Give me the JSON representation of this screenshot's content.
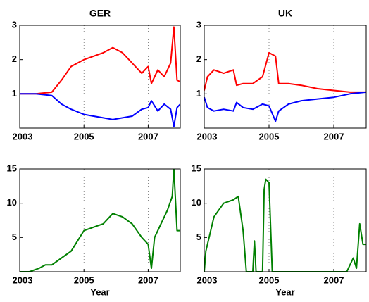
{
  "chart_data": [
    {
      "type": "line",
      "title": "GER",
      "x": [
        2003,
        2003.5,
        2004,
        2004.3,
        2004.6,
        2005,
        2005.3,
        2005.6,
        2005.9,
        2006.2,
        2006.5,
        2006.8,
        2007,
        2007.1,
        2007.3,
        2007.5,
        2007.7,
        2007.8,
        2007.9,
        2008
      ],
      "series": [
        {
          "color": "#ff0000",
          "values": [
            1,
            1,
            1.05,
            1.4,
            1.8,
            2.0,
            2.1,
            2.2,
            2.35,
            2.2,
            1.9,
            1.6,
            1.8,
            1.3,
            1.7,
            1.5,
            1.9,
            2.95,
            1.4,
            1.35
          ]
        },
        {
          "color": "#0000ff",
          "values": [
            1,
            1,
            0.95,
            0.7,
            0.55,
            0.4,
            0.35,
            0.3,
            0.25,
            0.3,
            0.35,
            0.55,
            0.6,
            0.8,
            0.5,
            0.7,
            0.55,
            0.05,
            0.6,
            0.7
          ]
        }
      ],
      "xlim": [
        2003,
        2008
      ],
      "ylim": [
        0,
        3
      ],
      "xticks": [
        2003,
        2005,
        2007
      ],
      "yticks": [
        1,
        2,
        3
      ],
      "grid": "x"
    },
    {
      "type": "line",
      "title": "UK",
      "x": [
        2003,
        2003.1,
        2003.3,
        2003.6,
        2003.9,
        2004,
        2004.2,
        2004.5,
        2004.8,
        2005,
        2005.2,
        2005.3,
        2005.6,
        2006,
        2006.5,
        2007,
        2007.5,
        2008
      ],
      "series": [
        {
          "color": "#ff0000",
          "values": [
            1.1,
            1.5,
            1.7,
            1.6,
            1.7,
            1.25,
            1.3,
            1.3,
            1.5,
            2.2,
            2.1,
            1.3,
            1.3,
            1.25,
            1.15,
            1.1,
            1.05,
            1.05
          ]
        },
        {
          "color": "#0000ff",
          "values": [
            0.9,
            0.6,
            0.5,
            0.55,
            0.5,
            0.75,
            0.6,
            0.55,
            0.7,
            0.65,
            0.2,
            0.5,
            0.7,
            0.8,
            0.85,
            0.9,
            1.0,
            1.05
          ]
        }
      ],
      "xlim": [
        2003,
        2008
      ],
      "ylim": [
        0,
        3
      ],
      "xticks": [
        2003,
        2005,
        2007
      ],
      "yticks": [
        1,
        2,
        3
      ],
      "grid": "x"
    },
    {
      "type": "line",
      "x_label": "Year",
      "x": [
        2003,
        2003.3,
        2003.6,
        2003.8,
        2004,
        2004.3,
        2004.6,
        2005,
        2005.3,
        2005.6,
        2005.9,
        2006.2,
        2006.5,
        2006.8,
        2007,
        2007.1,
        2007.2,
        2007.4,
        2007.6,
        2007.75,
        2007.8,
        2007.9,
        2008
      ],
      "series": [
        {
          "color": "#008000",
          "values": [
            0,
            0,
            0.5,
            1,
            1,
            2,
            3,
            6,
            6.5,
            7,
            8.5,
            8,
            7,
            5,
            4,
            0.5,
            5,
            7,
            9,
            11,
            15,
            6,
            6
          ]
        }
      ],
      "xlim": [
        2003,
        2008
      ],
      "ylim": [
        0,
        15
      ],
      "xticks": [
        2003,
        2005,
        2007
      ],
      "yticks": [
        5,
        10,
        15
      ],
      "grid": "x"
    },
    {
      "type": "line",
      "x_label": "Year",
      "x": [
        2003,
        2003.05,
        2003.3,
        2003.6,
        2003.9,
        2004.05,
        2004.2,
        2004.3,
        2004.5,
        2004.55,
        2004.6,
        2004.8,
        2004.85,
        2004.9,
        2005,
        2005.1,
        2005.2,
        2005.5,
        2006,
        2007.4,
        2007.6,
        2007.7,
        2007.8,
        2007.9,
        2008
      ],
      "series": [
        {
          "color": "#008000",
          "values": [
            0,
            3,
            8,
            10,
            10.5,
            11,
            6,
            0,
            0,
            4.5,
            0,
            0,
            12,
            13.5,
            13,
            0,
            0,
            0,
            0,
            0,
            2,
            0.5,
            7,
            4,
            4
          ]
        }
      ],
      "xlim": [
        2003,
        2008
      ],
      "ylim": [
        0,
        15
      ],
      "xticks": [
        2003,
        2005,
        2007
      ],
      "yticks": [
        5,
        10,
        15
      ],
      "grid": "x"
    }
  ]
}
